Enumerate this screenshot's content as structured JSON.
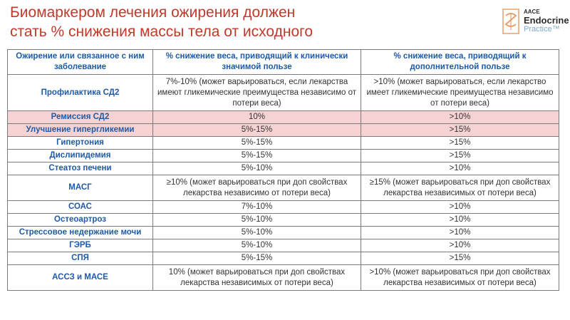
{
  "title": {
    "line1": "Биомаркером лечения ожирения должен",
    "line2": "стать % снижения массы тела от исходного"
  },
  "logo": {
    "aace": "AACE",
    "endocrine": "Endocrine",
    "practice": "Practice™"
  },
  "table": {
    "headers": [
      "Ожирение или связанное с ним заболевание",
      "% снижение веса, приводящий к клинически значимой пользе",
      "% снижение веса, приводящий к дополнительной пользе"
    ],
    "rows": [
      {
        "condition": "Профилактика СД2",
        "clinical": "7%-10% (может варьироваться, если лекарства имеют гликемические преимущества независимо от потери веса)",
        "additional": ">10% (может варьироваться, если лекарство имеет гликемические преимущества независимо от потери веса)"
      },
      {
        "condition": "Ремиссия СД2",
        "clinical": "10%",
        "additional": ">10%"
      },
      {
        "condition": "Улучшение гипергликемии",
        "clinical": "5%-15%",
        "additional": ">15%"
      },
      {
        "condition": "Гипертония",
        "clinical": "5%-15%",
        "additional": ">15%"
      },
      {
        "condition": "Дислипидемия",
        "clinical": "5%-15%",
        "additional": ">15%"
      },
      {
        "condition": "Стеатоз печени",
        "clinical": "5%-10%",
        "additional": ">10%"
      },
      {
        "condition": "МАСГ",
        "clinical": "≥10% (может варьироваться при доп свойствах лекарства независимо от потери веса)",
        "additional": "≥15% (может варьироваться при доп свойствах лекарства независимых от потери веса)"
      },
      {
        "condition": "СОАС",
        "clinical": "7%-10%",
        "additional": ">10%"
      },
      {
        "condition": "Остеоартроз",
        "clinical": "5%-10%",
        "additional": ">10%"
      },
      {
        "condition": "Стрессовое недержание мочи",
        "clinical": "5%-10%",
        "additional": ">10%"
      },
      {
        "condition": "ГЭРБ",
        "clinical": "5%-10%",
        "additional": ">10%"
      },
      {
        "condition": "СПЯ",
        "clinical": "5%-15%",
        "additional": ">15%"
      },
      {
        "condition": "АССЗ и МАСЕ",
        "clinical": "10% (может варьироваться при доп свойствах лекарства независимых от потери веса)",
        "additional": ">10% (может варьироваться при доп свойствах лекарства независимых от потери веса)"
      }
    ],
    "highlight_color": "#f7d2d2"
  },
  "colors": {
    "title": "#c0392b",
    "header_text": "#1e5aa8",
    "border": "#7a7a7a"
  }
}
